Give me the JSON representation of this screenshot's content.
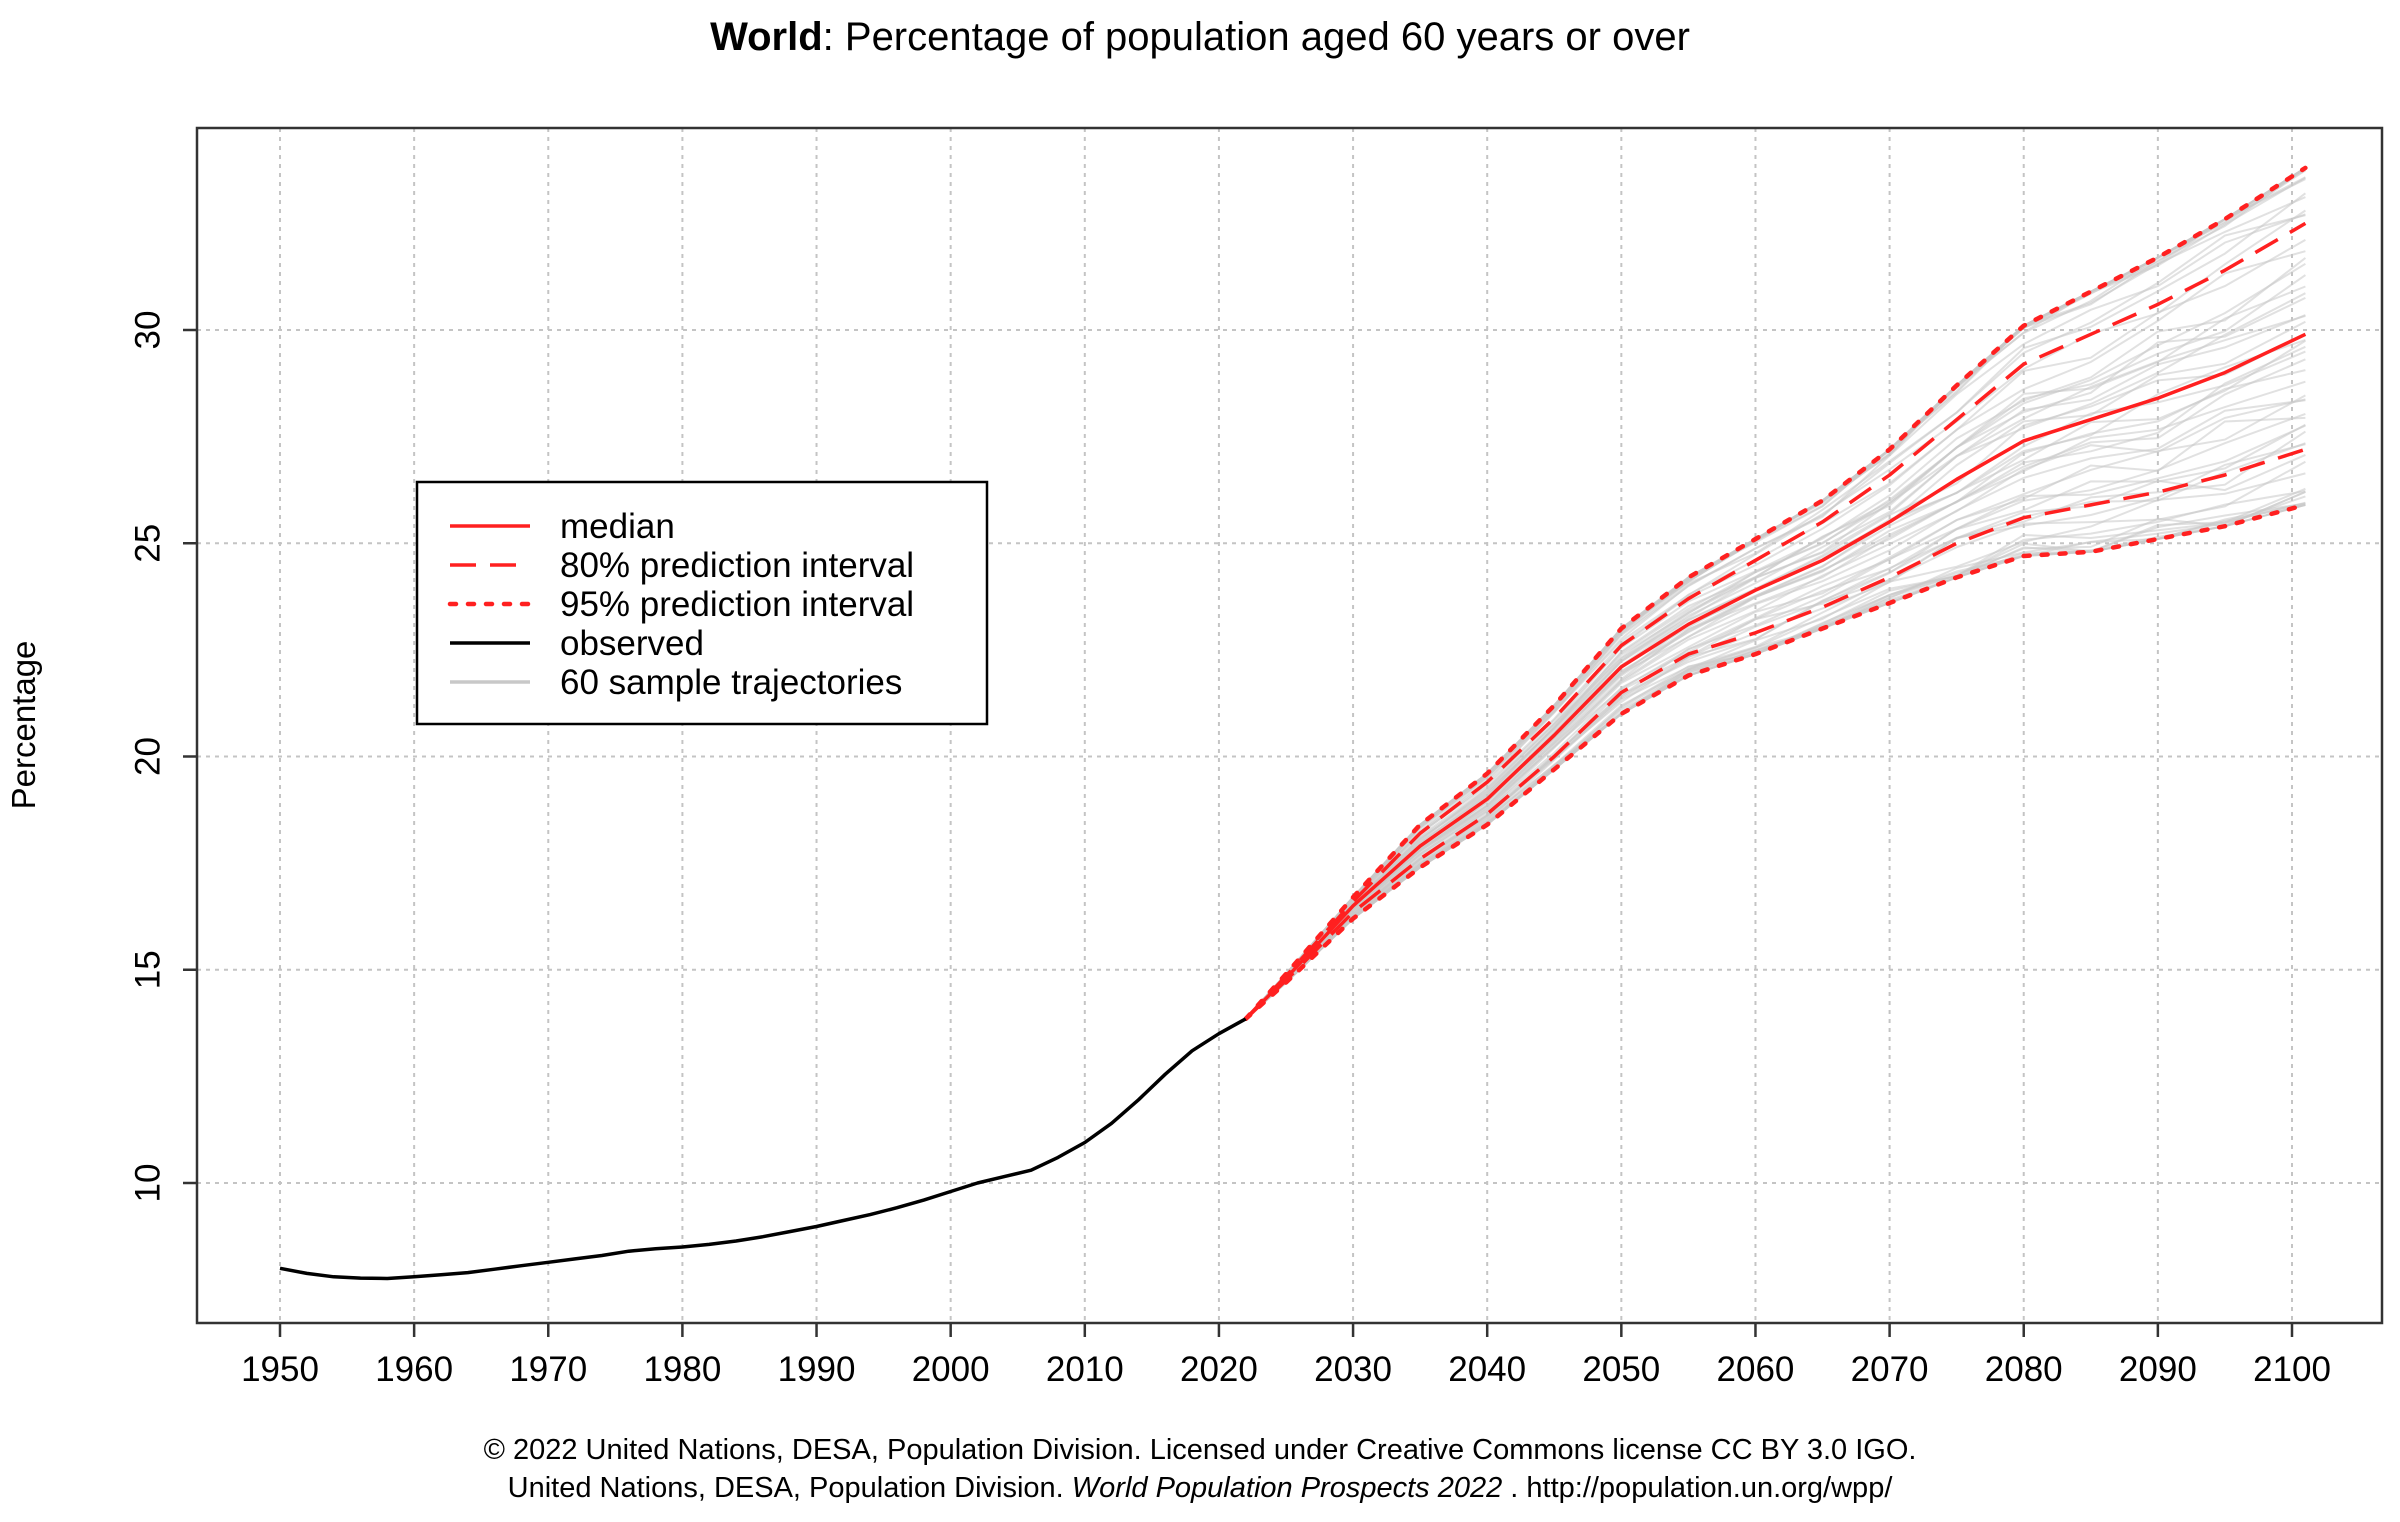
{
  "chart_data": {
    "type": "line",
    "title_bold": "World",
    "title_rest": ": Percentage of population aged 60 years or over",
    "xlabel": "",
    "ylabel": "Percentage",
    "xlim": [
      1950,
      2100
    ],
    "ylim": [
      7.2,
      35.0
    ],
    "x_ticks": [
      1950,
      1960,
      1970,
      1980,
      1990,
      2000,
      2010,
      2020,
      2030,
      2040,
      2050,
      2060,
      2070,
      2080,
      2090,
      2100
    ],
    "y_ticks": [
      10,
      15,
      20,
      25,
      30
    ],
    "grid": true,
    "legend_position": "center-left",
    "legend": [
      {
        "label": "median",
        "color": "#ff2020",
        "style": "solid"
      },
      {
        "label": "80% prediction interval",
        "color": "#ff2020",
        "style": "dashed"
      },
      {
        "label": "95% prediction interval",
        "color": "#ff2020",
        "style": "dotted"
      },
      {
        "label": "observed",
        "color": "#000000",
        "style": "solid"
      },
      {
        "label": "60 sample trajectories",
        "color": "#c8c8c8",
        "style": "solid"
      }
    ],
    "series": [
      {
        "name": "observed",
        "color": "#000000",
        "style": "solid",
        "x": [
          1950,
          1952,
          1954,
          1956,
          1958,
          1960,
          1962,
          1964,
          1966,
          1968,
          1970,
          1972,
          1974,
          1976,
          1978,
          1980,
          1982,
          1984,
          1986,
          1988,
          1990,
          1992,
          1994,
          1996,
          1998,
          2000,
          2002,
          2004,
          2006,
          2008,
          2010,
          2012,
          2014,
          2016,
          2018,
          2020,
          2022
        ],
        "y": [
          8.0,
          7.88,
          7.8,
          7.77,
          7.76,
          7.8,
          7.85,
          7.9,
          7.98,
          8.06,
          8.14,
          8.22,
          8.3,
          8.4,
          8.46,
          8.5,
          8.56,
          8.64,
          8.74,
          8.86,
          8.98,
          9.12,
          9.26,
          9.42,
          9.6,
          9.8,
          10.0,
          10.15,
          10.3,
          10.6,
          10.95,
          11.4,
          11.95,
          12.55,
          13.1,
          13.5,
          13.85
        ]
      },
      {
        "name": "median",
        "color": "#ff2020",
        "style": "solid",
        "x": [
          2022,
          2025,
          2030,
          2035,
          2040,
          2045,
          2050,
          2055,
          2060,
          2065,
          2070,
          2075,
          2080,
          2085,
          2090,
          2095,
          2101
        ],
        "y": [
          13.85,
          14.8,
          16.5,
          17.9,
          19.0,
          20.5,
          22.1,
          23.1,
          23.9,
          24.6,
          25.5,
          26.5,
          27.4,
          27.9,
          28.4,
          29.0,
          29.9
        ]
      },
      {
        "name": "80% upper",
        "color": "#ff2020",
        "style": "dashed",
        "x": [
          2022,
          2025,
          2030,
          2035,
          2040,
          2045,
          2050,
          2055,
          2060,
          2065,
          2070,
          2075,
          2080,
          2085,
          2090,
          2095,
          2101
        ],
        "y": [
          13.85,
          14.85,
          16.6,
          18.2,
          19.4,
          20.9,
          22.6,
          23.7,
          24.6,
          25.5,
          26.6,
          27.9,
          29.2,
          29.9,
          30.6,
          31.4,
          32.5
        ]
      },
      {
        "name": "80% lower",
        "color": "#ff2020",
        "style": "dashed",
        "x": [
          2022,
          2025,
          2030,
          2035,
          2040,
          2045,
          2050,
          2055,
          2060,
          2065,
          2070,
          2075,
          2080,
          2085,
          2090,
          2095,
          2101
        ],
        "y": [
          13.85,
          14.75,
          16.35,
          17.6,
          18.65,
          20.0,
          21.5,
          22.4,
          22.9,
          23.5,
          24.2,
          25.0,
          25.6,
          25.9,
          26.2,
          26.6,
          27.2
        ]
      },
      {
        "name": "95% upper",
        "color": "#ff2020",
        "style": "dotted",
        "x": [
          2022,
          2025,
          2030,
          2035,
          2040,
          2045,
          2050,
          2055,
          2060,
          2065,
          2070,
          2075,
          2080,
          2085,
          2090,
          2095,
          2101
        ],
        "y": [
          13.85,
          14.9,
          16.7,
          18.4,
          19.6,
          21.2,
          23.0,
          24.2,
          25.1,
          26.0,
          27.2,
          28.7,
          30.1,
          30.9,
          31.7,
          32.6,
          33.8
        ]
      },
      {
        "name": "95% lower",
        "color": "#ff2020",
        "style": "dotted",
        "x": [
          2022,
          2025,
          2030,
          2035,
          2040,
          2045,
          2050,
          2055,
          2060,
          2065,
          2070,
          2075,
          2080,
          2085,
          2090,
          2095,
          2101
        ],
        "y": [
          13.85,
          14.7,
          16.2,
          17.4,
          18.4,
          19.7,
          21.0,
          21.9,
          22.4,
          23.0,
          23.6,
          24.2,
          24.7,
          24.8,
          25.1,
          25.4,
          25.9
        ]
      }
    ],
    "sample_trajectories": {
      "count": 60,
      "color": "#c8c8c8",
      "x": [
        2022,
        2025,
        2030,
        2035,
        2040,
        2045,
        2050,
        2055,
        2060,
        2065,
        2070,
        2075,
        2080,
        2085,
        2090,
        2095,
        2101
      ]
    }
  },
  "footer": {
    "line1": "© 2022 United Nations, DESA, Population Division. Licensed under Creative Commons license CC BY 3.0 IGO.",
    "line2_start": "United Nations, DESA, Population Division. ",
    "line2_italic": "World Population Prospects 2022",
    "line2_end": " . http://population.un.org/wpp/"
  }
}
